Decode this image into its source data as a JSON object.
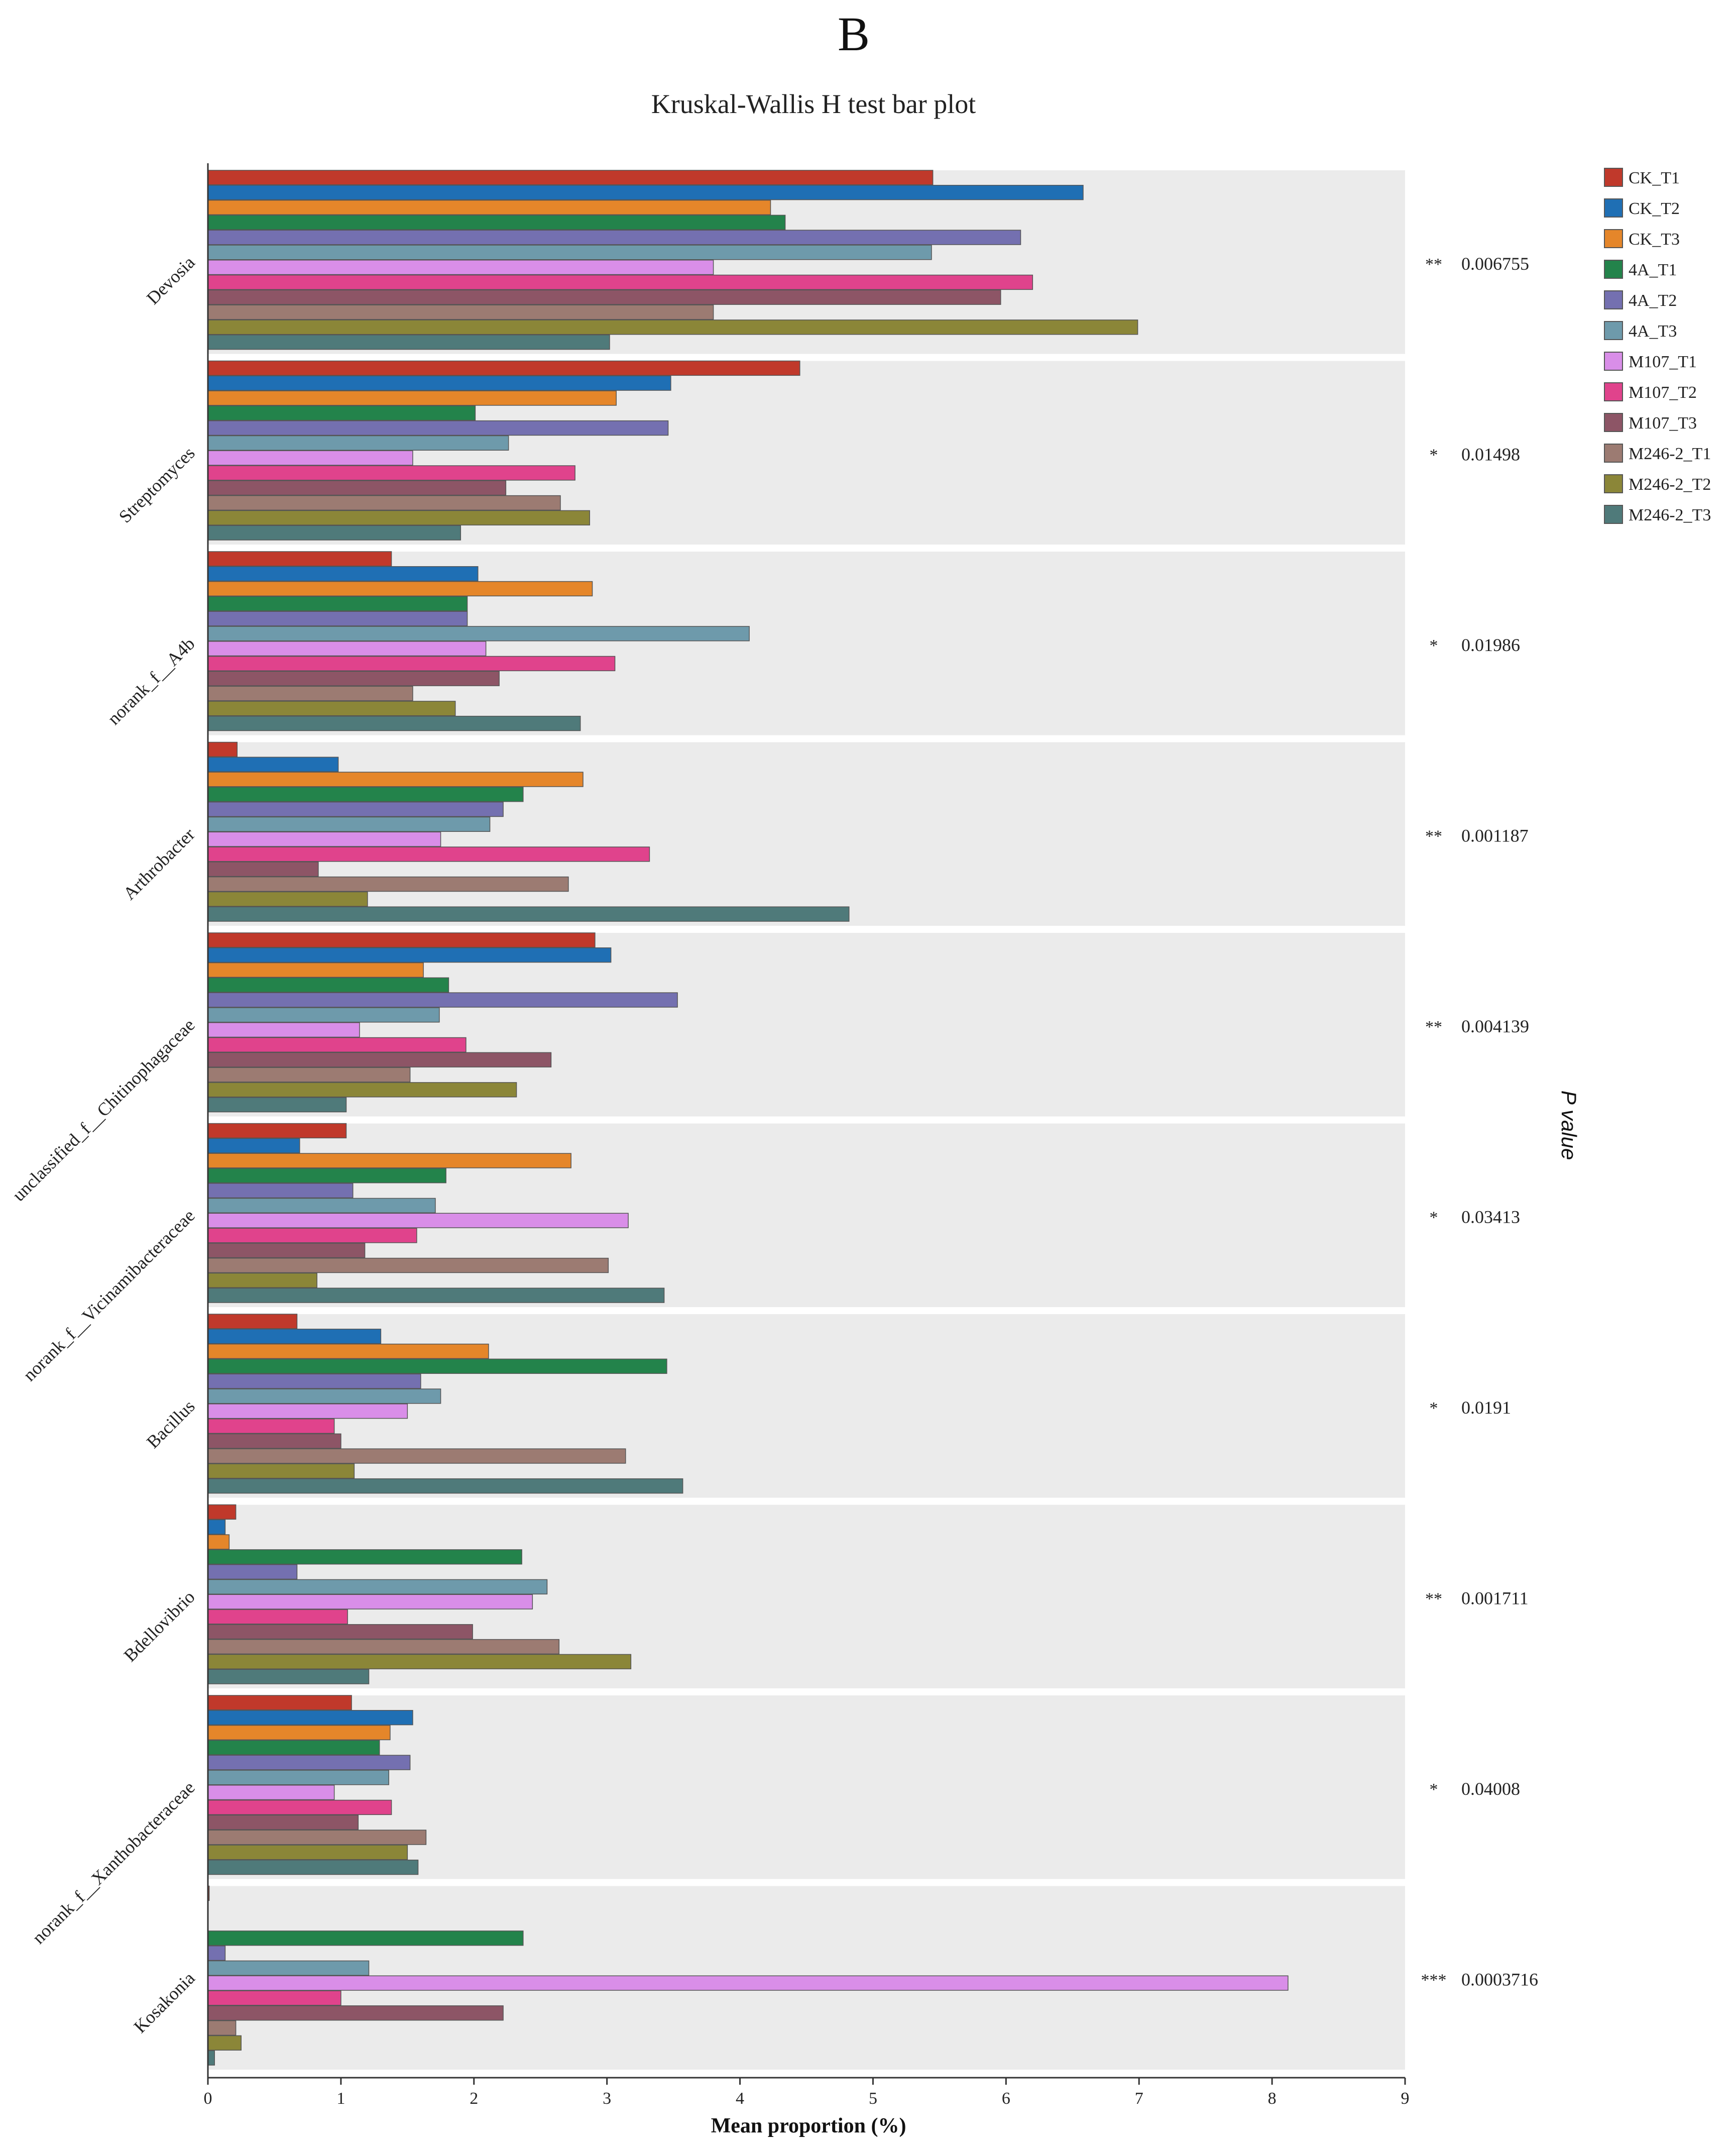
{
  "panel_label": "B",
  "chart_data": {
    "type": "bar",
    "orientation": "horizontal",
    "title": "Kruskal-Wallis H test bar plot",
    "xlabel": "Mean proportion (%)",
    "right_axis_label": "P value",
    "xlim": [
      0,
      9
    ],
    "xticks": [
      0,
      1,
      2,
      3,
      4,
      5,
      6,
      7,
      8,
      9
    ],
    "grid": false,
    "legend_position": "top-right",
    "categories": [
      "Devosia",
      "Streptomyces",
      "norank_f__A4b",
      "Arthrobacter",
      "unclassified_f__Chitinophagaceae",
      "norank_f__Vicinamibacteraceae",
      "Bacillus",
      "Bdellovibrio",
      "norank_f__Xanthobacteraceae",
      "Kosakonia"
    ],
    "significance": [
      "**",
      "*",
      "*",
      "**",
      "**",
      "*",
      "*",
      "**",
      "*",
      "***"
    ],
    "p_values": [
      "0.006755",
      "0.01498",
      "0.01986",
      "0.001187",
      "0.004139",
      "0.03413",
      "0.0191",
      "0.001711",
      "0.04008",
      "0.0003716"
    ],
    "series": [
      {
        "name": "CK_T1",
        "color": "#c0392b",
        "values": [
          5.45,
          4.45,
          1.38,
          0.22,
          2.91,
          1.04,
          0.67,
          0.21,
          1.08,
          0.01
        ]
      },
      {
        "name": "CK_T2",
        "color": "#1f6fb4",
        "values": [
          6.58,
          3.48,
          2.03,
          0.98,
          3.03,
          0.69,
          1.3,
          0.13,
          1.54,
          0.0
        ]
      },
      {
        "name": "CK_T3",
        "color": "#e5862a",
        "values": [
          4.23,
          3.07,
          2.89,
          2.82,
          1.62,
          2.73,
          2.11,
          0.16,
          1.37,
          0.0
        ]
      },
      {
        "name": "4A_T1",
        "color": "#23834b",
        "values": [
          4.34,
          2.01,
          1.95,
          2.37,
          1.81,
          1.79,
          3.45,
          2.36,
          1.29,
          2.37
        ]
      },
      {
        "name": "4A_T2",
        "color": "#7470b0",
        "values": [
          6.11,
          3.46,
          1.95,
          2.22,
          3.53,
          1.09,
          1.6,
          0.67,
          1.52,
          0.13
        ]
      },
      {
        "name": "4A_T3",
        "color": "#6e9aab",
        "values": [
          5.44,
          2.26,
          4.07,
          2.12,
          1.74,
          1.71,
          1.75,
          2.55,
          1.36,
          1.21
        ]
      },
      {
        "name": "M107_T1",
        "color": "#d98ee8",
        "values": [
          3.8,
          1.54,
          2.09,
          1.75,
          1.14,
          3.16,
          1.5,
          2.44,
          0.95,
          8.12
        ]
      },
      {
        "name": "M107_T2",
        "color": "#e0438c",
        "values": [
          6.2,
          2.76,
          3.06,
          3.32,
          1.94,
          1.57,
          0.95,
          1.05,
          1.38,
          1.0
        ]
      },
      {
        "name": "M107_T3",
        "color": "#8d5566",
        "values": [
          5.96,
          2.24,
          2.19,
          0.83,
          2.58,
          1.18,
          1.0,
          1.99,
          1.13,
          2.22
        ]
      },
      {
        "name": "M246-2_T1",
        "color": "#9c7b72",
        "values": [
          3.8,
          2.65,
          1.54,
          2.71,
          1.52,
          3.01,
          3.14,
          2.64,
          1.64,
          0.21
        ]
      },
      {
        "name": "M246-2_T2",
        "color": "#8b8638",
        "values": [
          6.99,
          2.87,
          1.86,
          1.2,
          2.32,
          0.82,
          1.1,
          3.18,
          1.5,
          0.25
        ]
      },
      {
        "name": "M246-2_T3",
        "color": "#4f7a7a",
        "values": [
          3.02,
          1.9,
          2.8,
          4.82,
          1.04,
          3.43,
          3.57,
          1.21,
          1.58,
          0.05
        ]
      }
    ]
  }
}
